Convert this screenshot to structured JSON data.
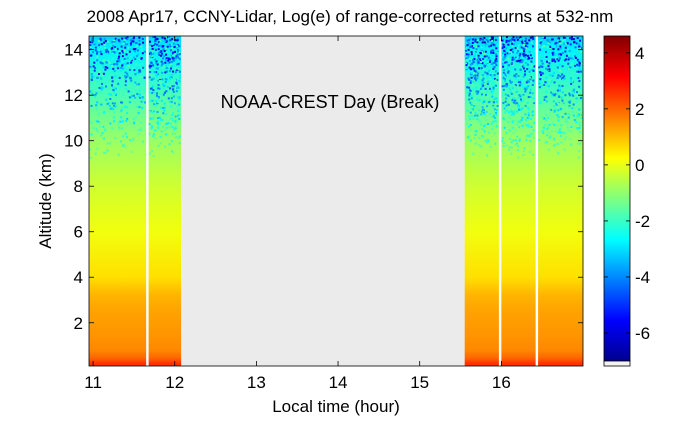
{
  "chart_data": {
    "type": "heatmap",
    "title": "2008 Apr17, CCNY-Lidar, Log(e) of range-corrected returns at 532-nm",
    "xlabel": "Local time (hour)",
    "ylabel": "Altitude (km)",
    "xlim": [
      10.95,
      17.0
    ],
    "ylim": [
      0.1,
      14.6
    ],
    "x_ticks": [
      11,
      12,
      13,
      14,
      15,
      16
    ],
    "y_ticks": [
      2,
      4,
      6,
      8,
      10,
      12,
      14
    ],
    "colorbar": {
      "range": [
        -7,
        4.6
      ],
      "ticks": [
        4,
        2,
        0,
        -2,
        -4,
        -6
      ],
      "colormap": "jet"
    },
    "data_segments": [
      {
        "x_start": 10.95,
        "x_end": 11.65
      },
      {
        "x_start": 11.68,
        "x_end": 12.08
      },
      {
        "x_start": 15.55,
        "x_end": 15.97
      },
      {
        "x_start": 16.0,
        "x_end": 16.42
      },
      {
        "x_start": 16.45,
        "x_end": 17.0
      }
    ],
    "gap": {
      "x_start": 12.08,
      "x_end": 15.55
    },
    "annotation": "NOAA-CREST Day (Break)",
    "profile": [
      {
        "altitude": 0.2,
        "value": 2.6
      },
      {
        "altitude": 0.45,
        "value": 2.0
      },
      {
        "altitude": 0.8,
        "value": 1.6
      },
      {
        "altitude": 1.5,
        "value": 1.45
      },
      {
        "altitude": 2.5,
        "value": 1.3
      },
      {
        "altitude": 3.2,
        "value": 1.1
      },
      {
        "altitude": 4.0,
        "value": 0.6
      },
      {
        "altitude": 6.0,
        "value": 0.1
      },
      {
        "altitude": 8.0,
        "value": -0.3
      },
      {
        "altitude": 10.0,
        "value": -0.9
      },
      {
        "altitude": 12.0,
        "value": -1.8
      },
      {
        "altitude": 14.0,
        "value": -2.8
      },
      {
        "altitude": 14.6,
        "value": -3.2
      }
    ],
    "colors": {
      "gap_fill": "#ebebeb",
      "gridline": "#ffffff"
    }
  }
}
